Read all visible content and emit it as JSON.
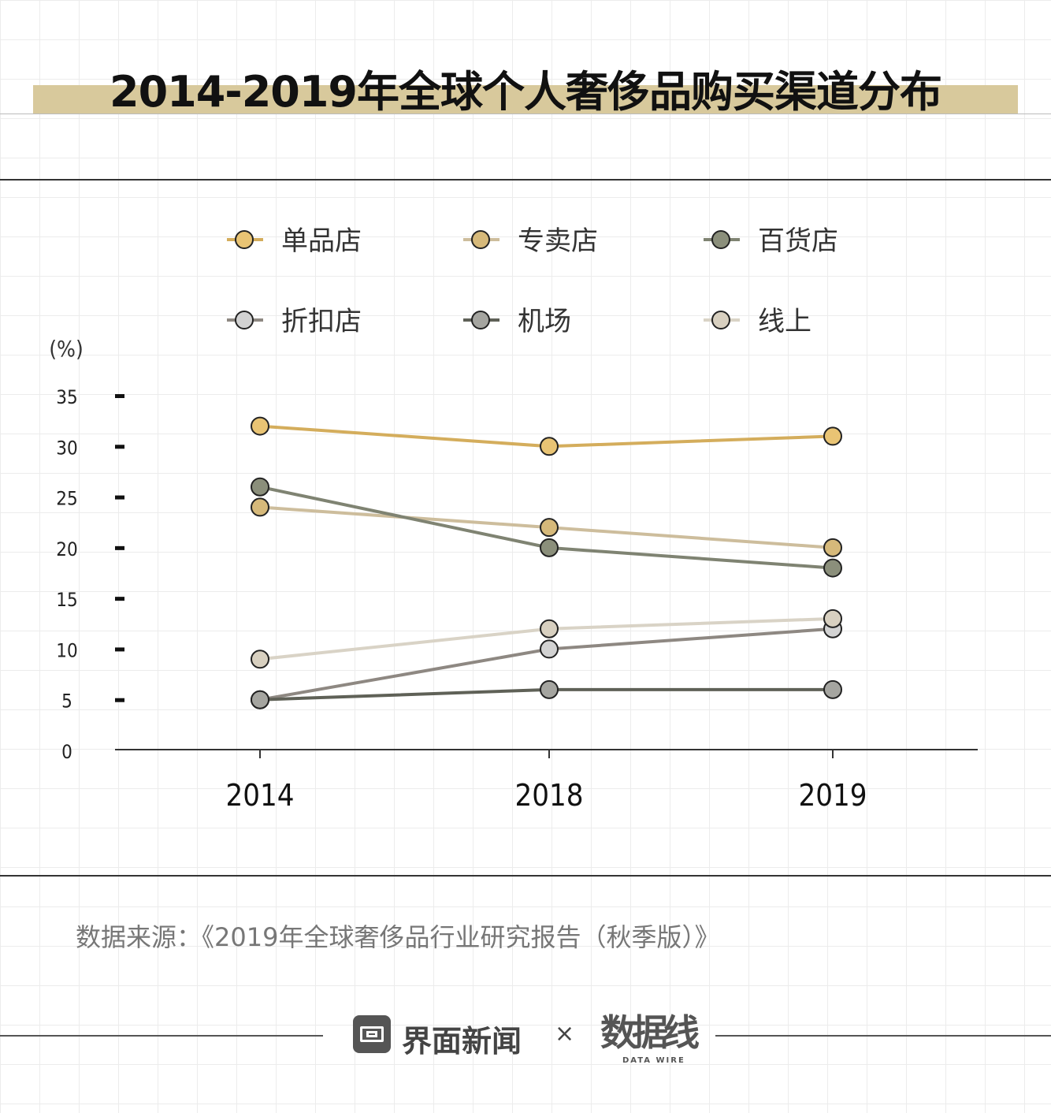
{
  "title": "2014-2019年全球个人奢侈品购买渠道分布",
  "source": "数据来源：《2019年全球奢侈品行业研究报告（秋季版）》",
  "footer": {
    "brand1": "界面新闻",
    "separator": "×",
    "brand2": "数据线",
    "brand2_sub": "DATA WIRE"
  },
  "chart_data": {
    "type": "line",
    "ylabel": "(%)",
    "ylim": [
      0,
      35
    ],
    "yticks": [
      "0",
      "5",
      "10",
      "15",
      "20",
      "25",
      "30",
      "35"
    ],
    "categories": [
      "2014",
      "2018",
      "2019"
    ],
    "legend": "top",
    "grid": false,
    "series": [
      {
        "name": "单品店",
        "color": "#d4ad5c",
        "fill": "#e9c474",
        "values": [
          32,
          30,
          31
        ]
      },
      {
        "name": "专卖店",
        "color": "#cdbd9c",
        "fill": "#d6b97a",
        "values": [
          24,
          22,
          20
        ]
      },
      {
        "name": "百货店",
        "color": "#7f8372",
        "fill": "#8b8f7b",
        "values": [
          26,
          20,
          18
        ]
      },
      {
        "name": "折扣店",
        "color": "#8e8882",
        "fill": "#d2d2d2",
        "values": [
          5,
          10,
          12
        ]
      },
      {
        "name": "机场",
        "color": "#5f6157",
        "fill": "#a5a5a0",
        "values": [
          5,
          6,
          6
        ]
      },
      {
        "name": "线上",
        "color": "#d9d3c6",
        "fill": "#d8d0c0",
        "values": [
          9,
          12,
          13
        ]
      }
    ]
  }
}
